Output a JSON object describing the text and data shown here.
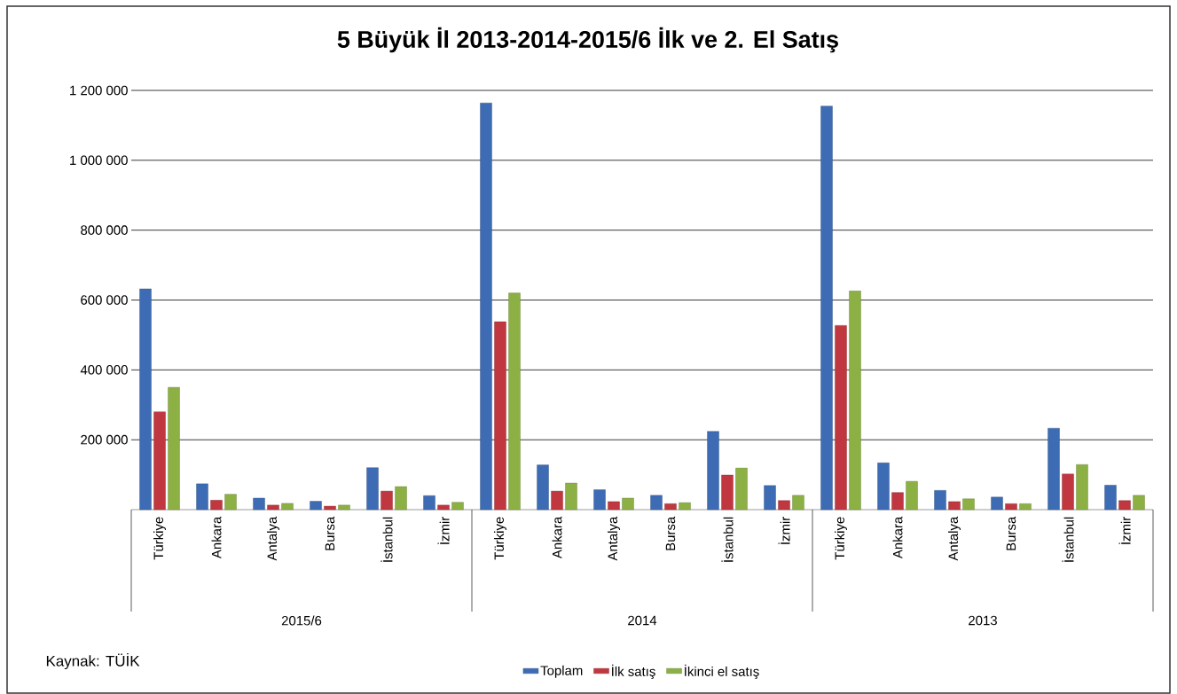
{
  "chart_data": {
    "type": "bar",
    "title": "5 Büyük İl  2013-2014-2015/6 İlk ve 2. El Satış",
    "categories": [
      "Türkiye",
      "Ankara",
      "Antalya",
      "Bursa",
      "İstanbul",
      "İzmir",
      "Türkiye",
      "Ankara",
      "Antalya",
      "Bursa",
      "İstanbul",
      "İzmir",
      "Türkiye",
      "Ankara",
      "Antalya",
      "Bursa",
      "İstanbul",
      "İzmir"
    ],
    "series": [
      {
        "name": "Toplam",
        "color": "#3d6cb5",
        "values": [
          632000,
          74000,
          33000,
          24000,
          120000,
          40000,
          1164000,
          128000,
          57000,
          41000,
          224000,
          69000,
          1155000,
          134000,
          55000,
          36000,
          233000,
          70000
        ]
      },
      {
        "name": "İlk satış",
        "color": "#c0373f",
        "values": [
          280000,
          27000,
          13000,
          10000,
          53000,
          13000,
          538000,
          53000,
          23000,
          17000,
          99000,
          26000,
          527000,
          49000,
          23000,
          17000,
          102000,
          26000
        ]
      },
      {
        "name": "İkinci el satış",
        "color": "#8db044",
        "values": [
          350000,
          44000,
          18000,
          13000,
          66000,
          21000,
          620000,
          76000,
          33000,
          20000,
          119000,
          41000,
          626000,
          81000,
          31000,
          17000,
          129000,
          41000
        ]
      }
    ],
    "ylim": [
      0,
      1200000
    ],
    "yticks": [
      {
        "value": 200000,
        "label": "200 000"
      },
      {
        "value": 400000,
        "label": "400 000"
      },
      {
        "value": 600000,
        "label": "600 000"
      },
      {
        "value": 800000,
        "label": "800 000"
      },
      {
        "value": 1000000,
        "label": "1 000 000"
      },
      {
        "value": 1200000,
        "label": "1 200 000"
      }
    ],
    "grid": "y",
    "legend": "bottom",
    "annotations": [
      "2015/6",
      "2014",
      "2013",
      "Kaynak: TÜİK"
    ]
  }
}
